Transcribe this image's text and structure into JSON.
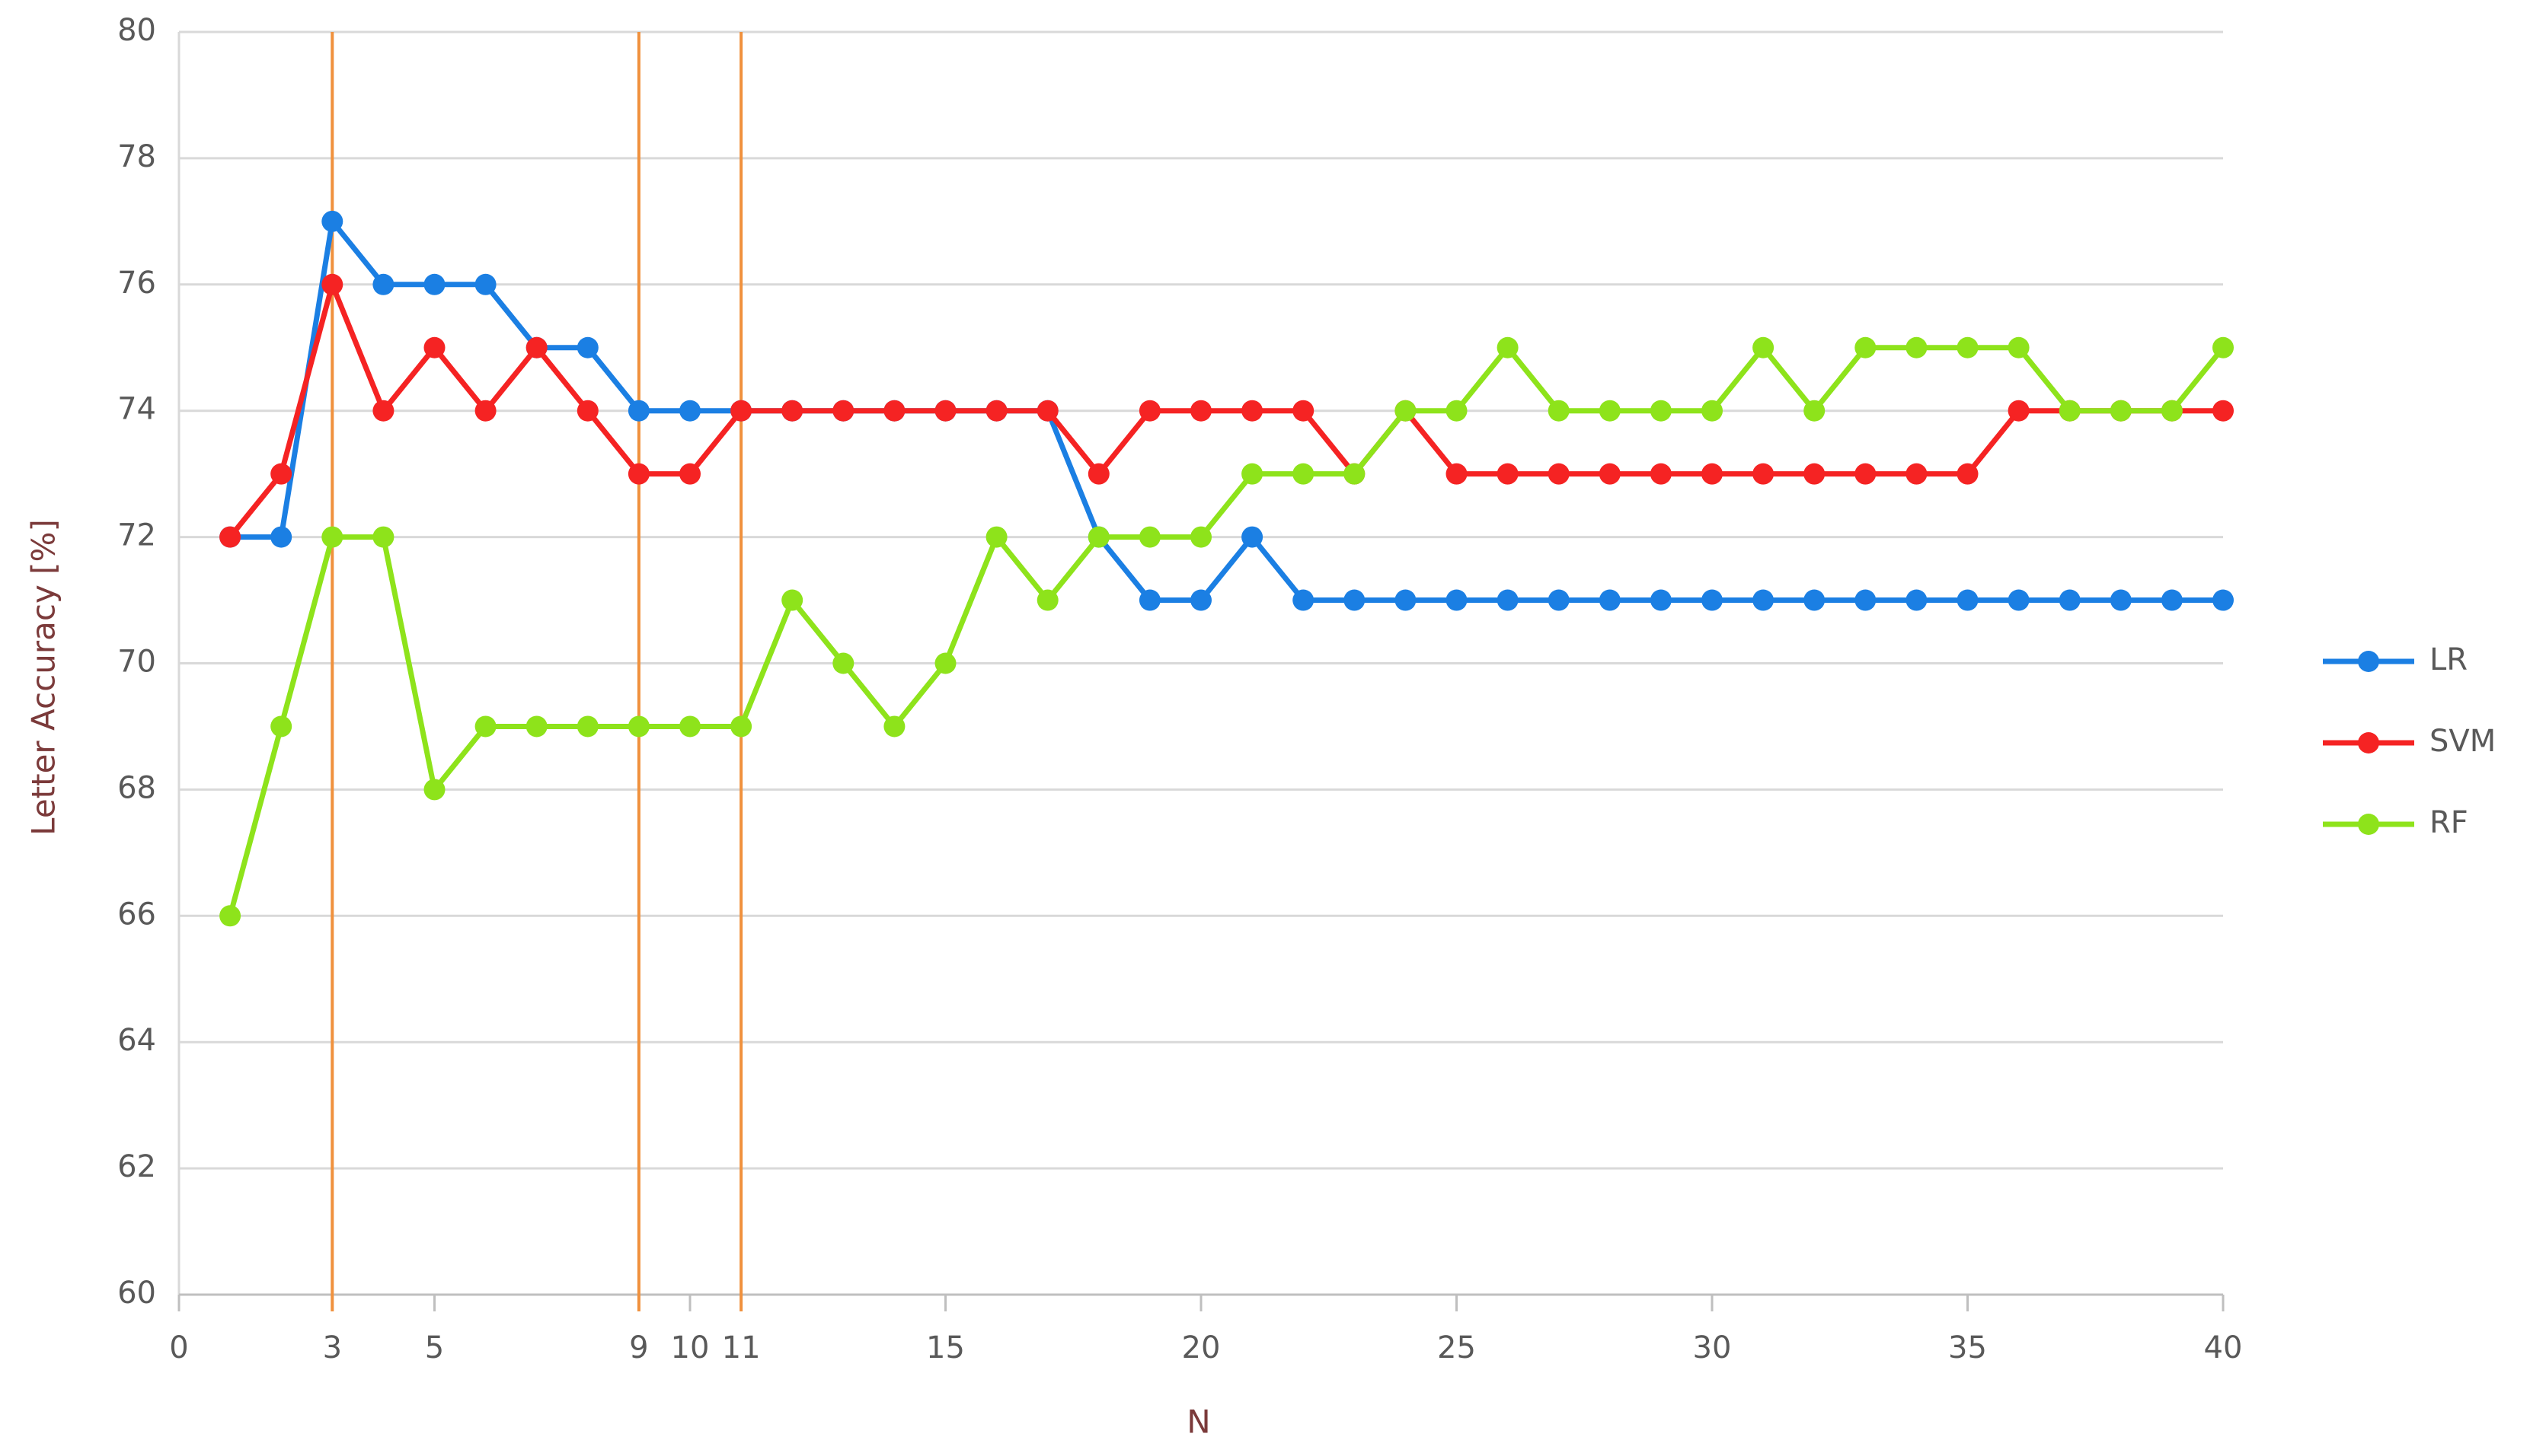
{
  "chart_data": {
    "type": "line",
    "x_label": "N",
    "y_label": "Letter  Accuracy [%]",
    "x": [
      1,
      2,
      3,
      4,
      5,
      6,
      7,
      8,
      9,
      10,
      11,
      12,
      13,
      14,
      15,
      16,
      17,
      18,
      19,
      20,
      21,
      22,
      23,
      24,
      25,
      26,
      27,
      28,
      29,
      30,
      31,
      32,
      33,
      34,
      35,
      36,
      37,
      38,
      39,
      40
    ],
    "series": [
      {
        "name": "LR",
        "color": "#1b7fe3",
        "values": [
          72,
          72,
          77,
          76,
          76,
          76,
          75,
          75,
          74,
          74,
          74,
          74,
          74,
          74,
          74,
          74,
          74,
          72,
          71,
          71,
          72,
          71,
          71,
          71,
          71,
          71,
          71,
          71,
          71,
          71,
          71,
          71,
          71,
          71,
          71,
          71,
          71,
          71,
          71,
          71
        ]
      },
      {
        "name": "SVM",
        "color": "#f52323",
        "values": [
          72,
          73,
          76,
          74,
          75,
          74,
          75,
          74,
          73,
          73,
          74,
          74,
          74,
          74,
          74,
          74,
          74,
          73,
          74,
          74,
          74,
          74,
          73,
          74,
          73,
          73,
          73,
          73,
          73,
          73,
          73,
          73,
          73,
          73,
          73,
          74,
          74,
          74,
          74,
          74
        ]
      },
      {
        "name": "RF",
        "color": "#8ee31b",
        "values": [
          66,
          69,
          72,
          72,
          68,
          69,
          69,
          69,
          69,
          69,
          69,
          71,
          70,
          69,
          70,
          72,
          71,
          72,
          72,
          72,
          73,
          73,
          73,
          74,
          74,
          75,
          74,
          74,
          74,
          74,
          75,
          74,
          75,
          75,
          75,
          75,
          74,
          74,
          74,
          75
        ]
      }
    ],
    "xlim": [
      0,
      40
    ],
    "xticks": [
      0,
      3,
      5,
      9,
      10,
      11,
      15,
      20,
      25,
      30,
      35,
      40
    ],
    "ylim": [
      60,
      80
    ],
    "yticks": [
      60,
      62,
      64,
      66,
      68,
      70,
      72,
      74,
      76,
      78,
      80
    ],
    "vlines": [
      3,
      9,
      11
    ],
    "vline_color": "#f0913d",
    "grid": true,
    "legend": "right"
  }
}
